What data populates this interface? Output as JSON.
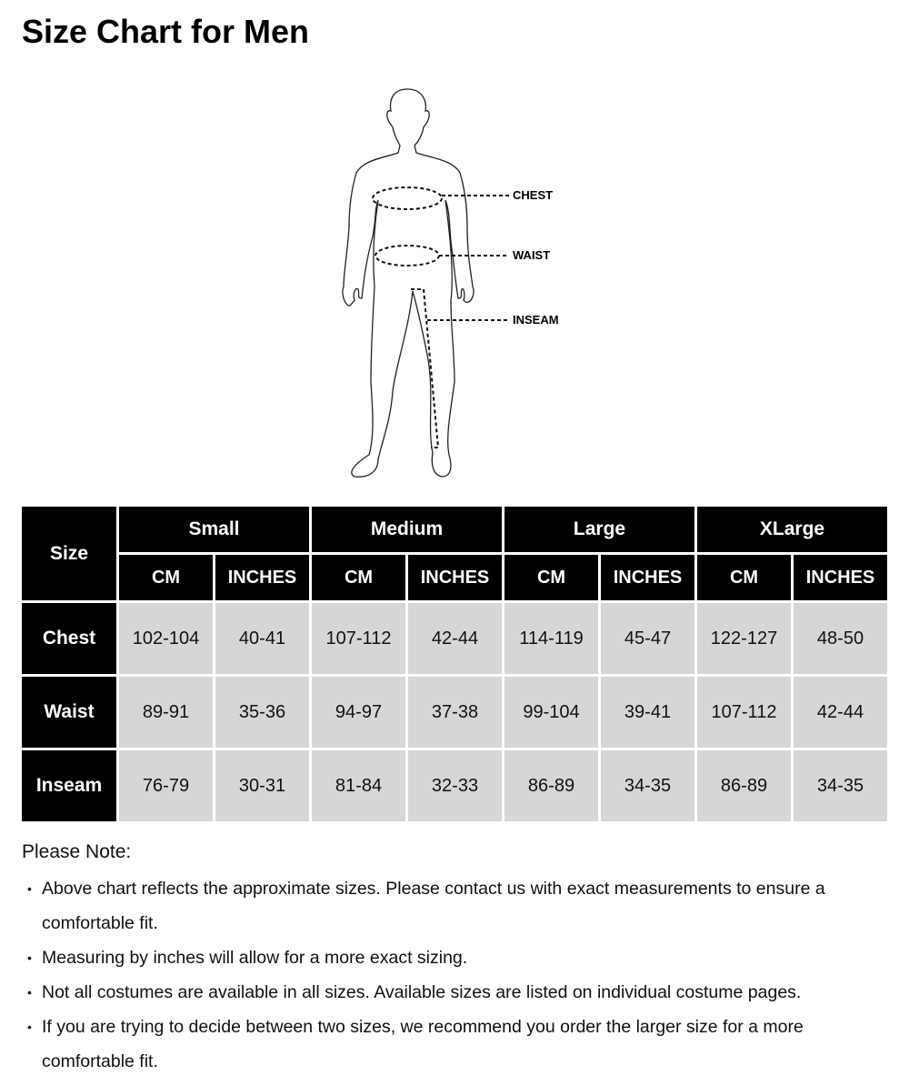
{
  "title": "Size Chart for Men",
  "figure": {
    "labels": {
      "chest": "CHEST",
      "waist": "WAIST",
      "inseam": "INSEAM"
    }
  },
  "table": {
    "corner": "Size",
    "sizes": [
      "Small",
      "Medium",
      "Large",
      "XLarge"
    ],
    "units": [
      "CM",
      "INCHES"
    ],
    "rows": [
      {
        "label": "Chest",
        "values": [
          "102-104",
          "40-41",
          "107-112",
          "42-44",
          "114-119",
          "45-47",
          "122-127",
          "48-50"
        ]
      },
      {
        "label": "Waist",
        "values": [
          "89-91",
          "35-36",
          "94-97",
          "37-38",
          "99-104",
          "39-41",
          "107-112",
          "42-44"
        ]
      },
      {
        "label": "Inseam",
        "values": [
          "76-79",
          "30-31",
          "81-84",
          "32-33",
          "86-89",
          "34-35",
          "86-89",
          "34-35"
        ]
      }
    ]
  },
  "notes": {
    "title": "Please Note:",
    "items": [
      "Above chart reflects the approximate sizes. Please contact us with exact measurements to ensure a comfortable fit.",
      "Measuring by inches will allow for a more exact sizing.",
      "Not all costumes are available in all sizes. Available sizes are listed on individual costume pages.",
      "If you are trying to decide between two sizes, we recommend you order the larger size for a more comfortable fit."
    ]
  }
}
